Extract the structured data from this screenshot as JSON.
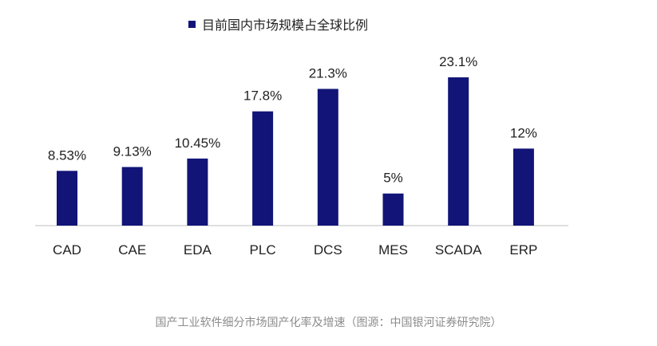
{
  "colors": {
    "bar": "#121478",
    "axis": "#bfbfbf",
    "text": "#222222",
    "caption": "#8c8c8c"
  },
  "caption": "国产工业软件细分市场国产化率及增速（图源：中国银河证券研究院）",
  "chart_data": {
    "type": "bar",
    "categories": [
      "CAD",
      "CAE",
      "EDA",
      "PLC",
      "DCS",
      "MES",
      "SCADA",
      "ERP"
    ],
    "series": [
      {
        "name": "目前国内市场规模占全球比例",
        "values": [
          8.53,
          9.13,
          10.45,
          17.8,
          21.3,
          5,
          23.1,
          12
        ]
      }
    ],
    "data_labels": [
      "8.53%",
      "9.13%",
      "10.45%",
      "17.8%",
      "21.3%",
      "5%",
      "23.1%",
      "12%"
    ],
    "ylim": [
      0,
      23.1
    ],
    "grid": false,
    "legend_position": "top-center"
  }
}
